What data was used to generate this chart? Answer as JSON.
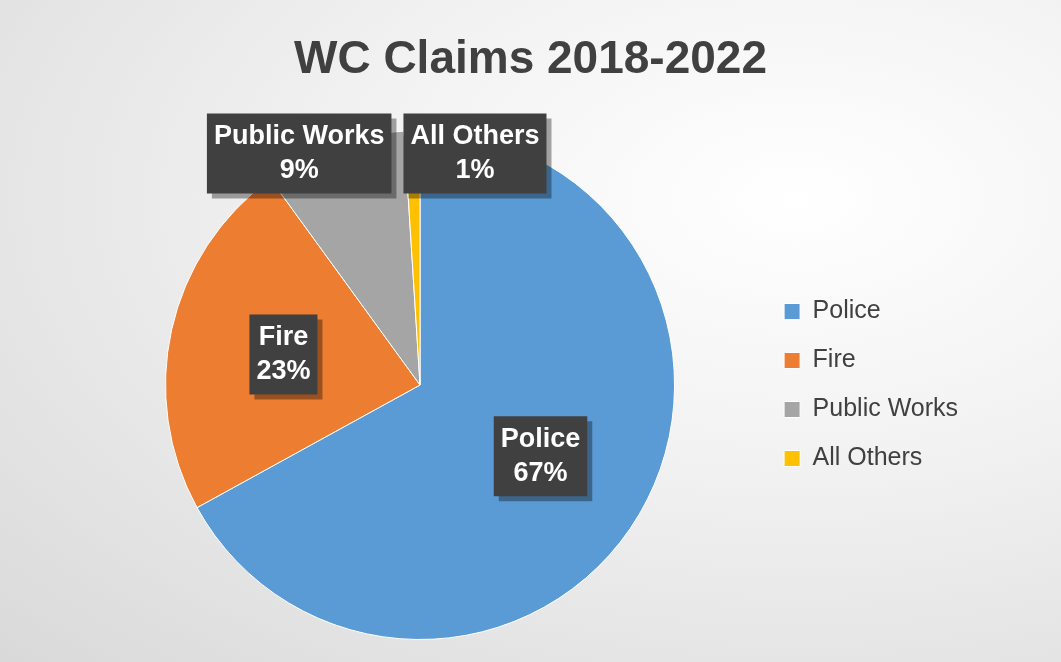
{
  "chart_data": {
    "type": "pie",
    "title": "WC Claims 2018-2022",
    "categories": [
      "Police",
      "Fire",
      "Public Works",
      "All Others"
    ],
    "values": [
      67,
      23,
      9,
      1
    ],
    "value_labels": [
      "67%",
      "23%",
      "9%",
      "1%"
    ],
    "colors": [
      "#5b9bd5",
      "#ed7d31",
      "#a5a5a5",
      "#ffc000"
    ],
    "legend": "right"
  }
}
